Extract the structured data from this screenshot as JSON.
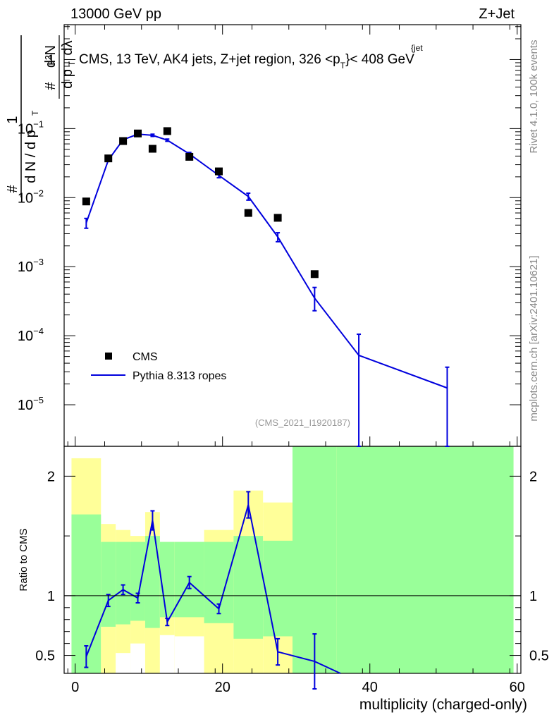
{
  "header": {
    "left": "13000 GeV pp",
    "right": "Z+Jet"
  },
  "title": "CMS, 13 TeV, AK4 jets, Z+jet region, 326 <p",
  "title_sub": "T",
  "title_sup": "{jet",
  "title_end": "}< 408 GeV",
  "ylabel": {
    "one": "1",
    "hash_num": "#",
    "dN": "d N / d p",
    "T1": "T",
    "hash2": "#",
    "d2N": "d²N",
    "dpt": "d p",
    "T2": "T",
    "dlambda": "dλ"
  },
  "side_right_top": "Rivet 4.1.0,  100k events",
  "side_right_bottom": "mcplots.cern.ch [arXiv:2401.10621]",
  "analysis_id": "(CMS_2021_I1920187)",
  "legend": {
    "data_label": "CMS",
    "mc_label": "Pythia 8.313 ropes"
  },
  "colors": {
    "mc": "#0000dd",
    "data": "#000000",
    "band_inner": "#99ff99",
    "band_outer": "#ffff99"
  },
  "ratio_ylabel": "Ratio to CMS",
  "xlabel": "multiplicity (charged-only)",
  "chart_data": [
    {
      "type": "scatter",
      "panel": "main",
      "yscale": "log",
      "xlim": [
        -1.5,
        60.5
      ],
      "ylim": [
        2.5e-06,
        3.2
      ],
      "x_ticks": [
        0,
        20,
        40,
        60
      ],
      "y_ticks": [
        {
          "v": 1,
          "b": "1",
          "e": ""
        },
        {
          "v": 0.1,
          "b": "10",
          "e": "−1"
        },
        {
          "v": 0.01,
          "b": "10",
          "e": "−2"
        },
        {
          "v": 0.001,
          "b": "10",
          "e": "−3"
        },
        {
          "v": 0.0001,
          "b": "10",
          "e": "−4"
        },
        {
          "v": 1e-05,
          "b": "10",
          "e": "−5"
        }
      ],
      "series": [
        {
          "name": "CMS",
          "x": [
            1.5,
            4.5,
            6.5,
            8.5,
            10.5,
            12.5,
            15.5,
            19.5,
            23.5,
            27.5,
            32.5
          ],
          "y": [
            0.0088,
            0.037,
            0.066,
            0.085,
            0.051,
            0.092,
            0.039,
            0.024,
            0.006,
            0.0051,
            0.00078
          ]
        },
        {
          "name": "Pythia 8.313 ropes",
          "x": [
            1.5,
            4.5,
            6.5,
            8.5,
            10.5,
            12.5,
            15.5,
            19.5,
            23.5,
            27.5,
            32.5,
            38.5,
            50.5
          ],
          "y": [
            0.0043,
            0.035,
            0.069,
            0.083,
            0.08,
            0.068,
            0.043,
            0.021,
            0.0104,
            0.0027,
            0.00035,
            5.2e-05,
            1.75e-05
          ],
          "yerr_low": [
            0.0007,
            0.0012,
            0.0022,
            0.003,
            0.003,
            0.0025,
            0.0022,
            0.0016,
            0.0012,
            0.0004,
            0.00012,
            5.19e-05,
            1.74e-05
          ],
          "yerr_high": [
            0.0007,
            0.0012,
            0.0022,
            0.003,
            0.003,
            0.0025,
            0.0022,
            0.0016,
            0.0012,
            0.0004,
            0.00015,
            5.3e-05,
            1.75e-05
          ]
        }
      ]
    },
    {
      "type": "line",
      "panel": "ratio",
      "ylabel": "Ratio to CMS",
      "xlabel": "multiplicity (charged-only)",
      "ylim": [
        0.35,
        2.25
      ],
      "x_ticks": [
        0,
        20,
        40,
        60
      ],
      "y_ticks": [
        0.5,
        1,
        2
      ],
      "bands": {
        "edges": [
          -0.5,
          3.5,
          5.5,
          7.5,
          9.5,
          11.5,
          13.5,
          17.5,
          21.5,
          25.5,
          29.5,
          35.5,
          59.5
        ],
        "inner_low": [
          0.35,
          0.74,
          0.76,
          0.79,
          0.73,
          0.82,
          0.82,
          0.77,
          0.64,
          0.66,
          0.35,
          0.35
        ],
        "inner_high": [
          1.68,
          1.45,
          1.45,
          1.45,
          1.5,
          1.45,
          1.45,
          1.45,
          1.5,
          1.46,
          2.25,
          2.25
        ],
        "outer_low": [
          0.35,
          0.35,
          0.35,
          0.35,
          0.35,
          0.35,
          0.35,
          0.35,
          0.35,
          0.35,
          0.35,
          0.35
        ],
        "outer_high": [
          2.15,
          1.6,
          1.55,
          1.5,
          1.7,
          1.45,
          1.45,
          1.55,
          1.88,
          1.78,
          2.25,
          2.25
        ],
        "white_low": [
          0.35,
          0.35,
          0.35,
          0.35,
          0.35,
          0.35,
          0.35,
          0.35,
          0.35,
          0.35,
          0.35,
          0.35
        ],
        "white_high": [
          0.35,
          0.35,
          0.52,
          0.6,
          0.35,
          0.67,
          0.66,
          0.35,
          0.35,
          0.35,
          0.35,
          0.35
        ]
      },
      "series": [
        {
          "name": "Pythia 8.313 ropes / CMS",
          "x": [
            1.5,
            4.5,
            6.5,
            8.5,
            10.5,
            12.5,
            15.5,
            19.5,
            23.5,
            27.5,
            32.5,
            36.0
          ],
          "y": [
            0.49,
            0.96,
            1.05,
            0.98,
            1.63,
            0.78,
            1.11,
            0.89,
            1.76,
            0.53,
            0.45,
            0.35
          ],
          "yerr": [
            0.09,
            0.05,
            0.04,
            0.04,
            0.08,
            0.03,
            0.05,
            0.04,
            0.11,
            0.11,
            0.23,
            0
          ]
        }
      ]
    }
  ]
}
